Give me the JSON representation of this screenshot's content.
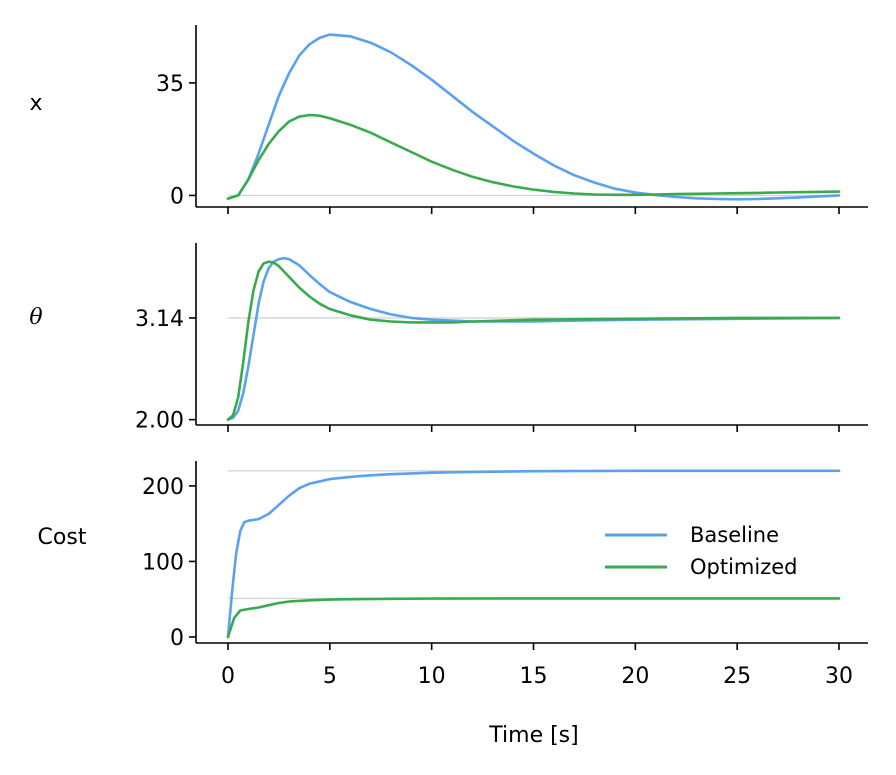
{
  "chart_data": [
    {
      "type": "line",
      "ylabel": "x",
      "xlim": [
        0,
        30
      ],
      "ylim": [
        -3.6,
        53
      ],
      "yticks": [
        {
          "value": 0,
          "label": "0"
        },
        {
          "value": 35,
          "label": "35"
        }
      ],
      "reference_line": 0,
      "series": [
        {
          "name": "Baseline",
          "color": "#5aa2ee",
          "x": [
            0,
            0.5,
            1,
            1.5,
            2,
            2.5,
            3,
            3.5,
            4,
            4.5,
            5,
            6,
            7,
            8,
            9,
            10,
            11,
            12,
            13,
            14,
            15,
            16,
            17,
            18,
            19,
            20,
            21,
            22,
            23,
            24,
            25,
            26,
            27,
            28,
            29,
            30
          ],
          "y": [
            -1,
            0,
            5,
            13,
            22,
            31,
            38,
            43.5,
            47,
            49,
            50,
            49.5,
            47.5,
            44.5,
            40.5,
            36,
            31,
            26,
            21.5,
            17,
            13,
            9.3,
            6.3,
            4,
            2.1,
            0.9,
            0.1,
            -0.5,
            -0.9,
            -1.1,
            -1.2,
            -1.1,
            -0.9,
            -0.6,
            -0.3,
            0
          ]
        },
        {
          "name": "Optimized",
          "color": "#3aaa4e",
          "x": [
            0,
            0.5,
            1,
            1.5,
            2,
            2.5,
            3,
            3.5,
            4,
            4.5,
            5,
            6,
            7,
            8,
            9,
            10,
            11,
            12,
            13,
            14,
            15,
            16,
            17,
            18,
            19,
            20,
            21,
            22,
            23,
            24,
            25,
            26,
            27,
            28,
            29,
            30
          ],
          "y": [
            -1,
            0,
            5,
            11,
            16,
            20,
            23,
            24.5,
            25,
            24.8,
            24,
            22,
            19.5,
            16.5,
            13.5,
            10.5,
            8,
            5.8,
            4.1,
            2.8,
            1.8,
            1.1,
            0.6,
            0.3,
            0.2,
            0.2,
            0.3,
            0.4,
            0.5,
            0.6,
            0.7,
            0.8,
            0.9,
            1,
            1.1,
            1.2
          ]
        }
      ]
    },
    {
      "type": "line",
      "ylabel": "θ",
      "xlim": [
        0,
        30
      ],
      "ylim": [
        1.94,
        3.98
      ],
      "yticks": [
        {
          "value": 2.0,
          "label": "2.00"
        },
        {
          "value": 3.14,
          "label": "3.14"
        }
      ],
      "reference_line": 3.14,
      "series": [
        {
          "name": "Baseline",
          "color": "#5aa2ee",
          "x": [
            0,
            0.25,
            0.5,
            0.75,
            1,
            1.25,
            1.5,
            1.75,
            2,
            2.25,
            2.5,
            2.75,
            3,
            3.5,
            4,
            4.5,
            5,
            6,
            7,
            8,
            9,
            10,
            11,
            12,
            13,
            14,
            15,
            17,
            20,
            25,
            30
          ],
          "y": [
            2.0,
            2.02,
            2.1,
            2.3,
            2.6,
            2.95,
            3.3,
            3.55,
            3.7,
            3.77,
            3.8,
            3.81,
            3.8,
            3.73,
            3.62,
            3.52,
            3.43,
            3.32,
            3.24,
            3.18,
            3.14,
            3.12,
            3.11,
            3.1,
            3.1,
            3.1,
            3.1,
            3.11,
            3.12,
            3.13,
            3.14
          ]
        },
        {
          "name": "Optimized",
          "color": "#3aaa4e",
          "x": [
            0,
            0.25,
            0.5,
            0.75,
            1,
            1.25,
            1.5,
            1.75,
            2,
            2.25,
            2.5,
            3,
            3.5,
            4,
            4.5,
            5,
            6,
            7,
            8,
            9,
            10,
            11,
            12,
            15,
            20,
            25,
            30
          ],
          "y": [
            2.0,
            2.05,
            2.25,
            2.65,
            3.1,
            3.45,
            3.66,
            3.75,
            3.77,
            3.76,
            3.72,
            3.6,
            3.48,
            3.38,
            3.3,
            3.24,
            3.17,
            3.12,
            3.1,
            3.09,
            3.09,
            3.09,
            3.1,
            3.12,
            3.13,
            3.14,
            3.14
          ]
        }
      ]
    },
    {
      "type": "line",
      "ylabel": "Cost",
      "xlabel": "Time [s]",
      "xlim": [
        0,
        30
      ],
      "ylim": [
        -8,
        233
      ],
      "xticks": [
        0,
        5,
        10,
        15,
        20,
        25,
        30
      ],
      "yticks": [
        {
          "value": 0,
          "label": "0"
        },
        {
          "value": 100,
          "label": "100"
        },
        {
          "value": 200,
          "label": "200"
        }
      ],
      "reference_lines": [
        220,
        51
      ],
      "legend": {
        "position": "center-right",
        "entries": [
          "Baseline",
          "Optimized"
        ]
      },
      "series": [
        {
          "name": "Baseline",
          "color": "#5aa2ee",
          "x": [
            0,
            0.2,
            0.4,
            0.6,
            0.8,
            1,
            1.5,
            2,
            2.5,
            3,
            3.5,
            4,
            5,
            6,
            7,
            8,
            10,
            12,
            15,
            20,
            25,
            30
          ],
          "y": [
            0,
            60,
            110,
            140,
            152,
            154,
            156,
            163,
            175,
            187,
            197,
            203,
            209,
            212,
            214,
            215.5,
            217.5,
            218.5,
            219.5,
            220,
            220,
            220
          ]
        },
        {
          "name": "Optimized",
          "color": "#3aaa4e",
          "x": [
            0,
            0.3,
            0.6,
            1,
            1.5,
            2,
            2.5,
            3,
            4,
            5,
            6,
            8,
            10,
            15,
            20,
            25,
            30
          ],
          "y": [
            0,
            25,
            35,
            37,
            39,
            42,
            45,
            47,
            48.5,
            49.5,
            50,
            50.5,
            50.8,
            51,
            51,
            51,
            51
          ]
        }
      ]
    }
  ]
}
